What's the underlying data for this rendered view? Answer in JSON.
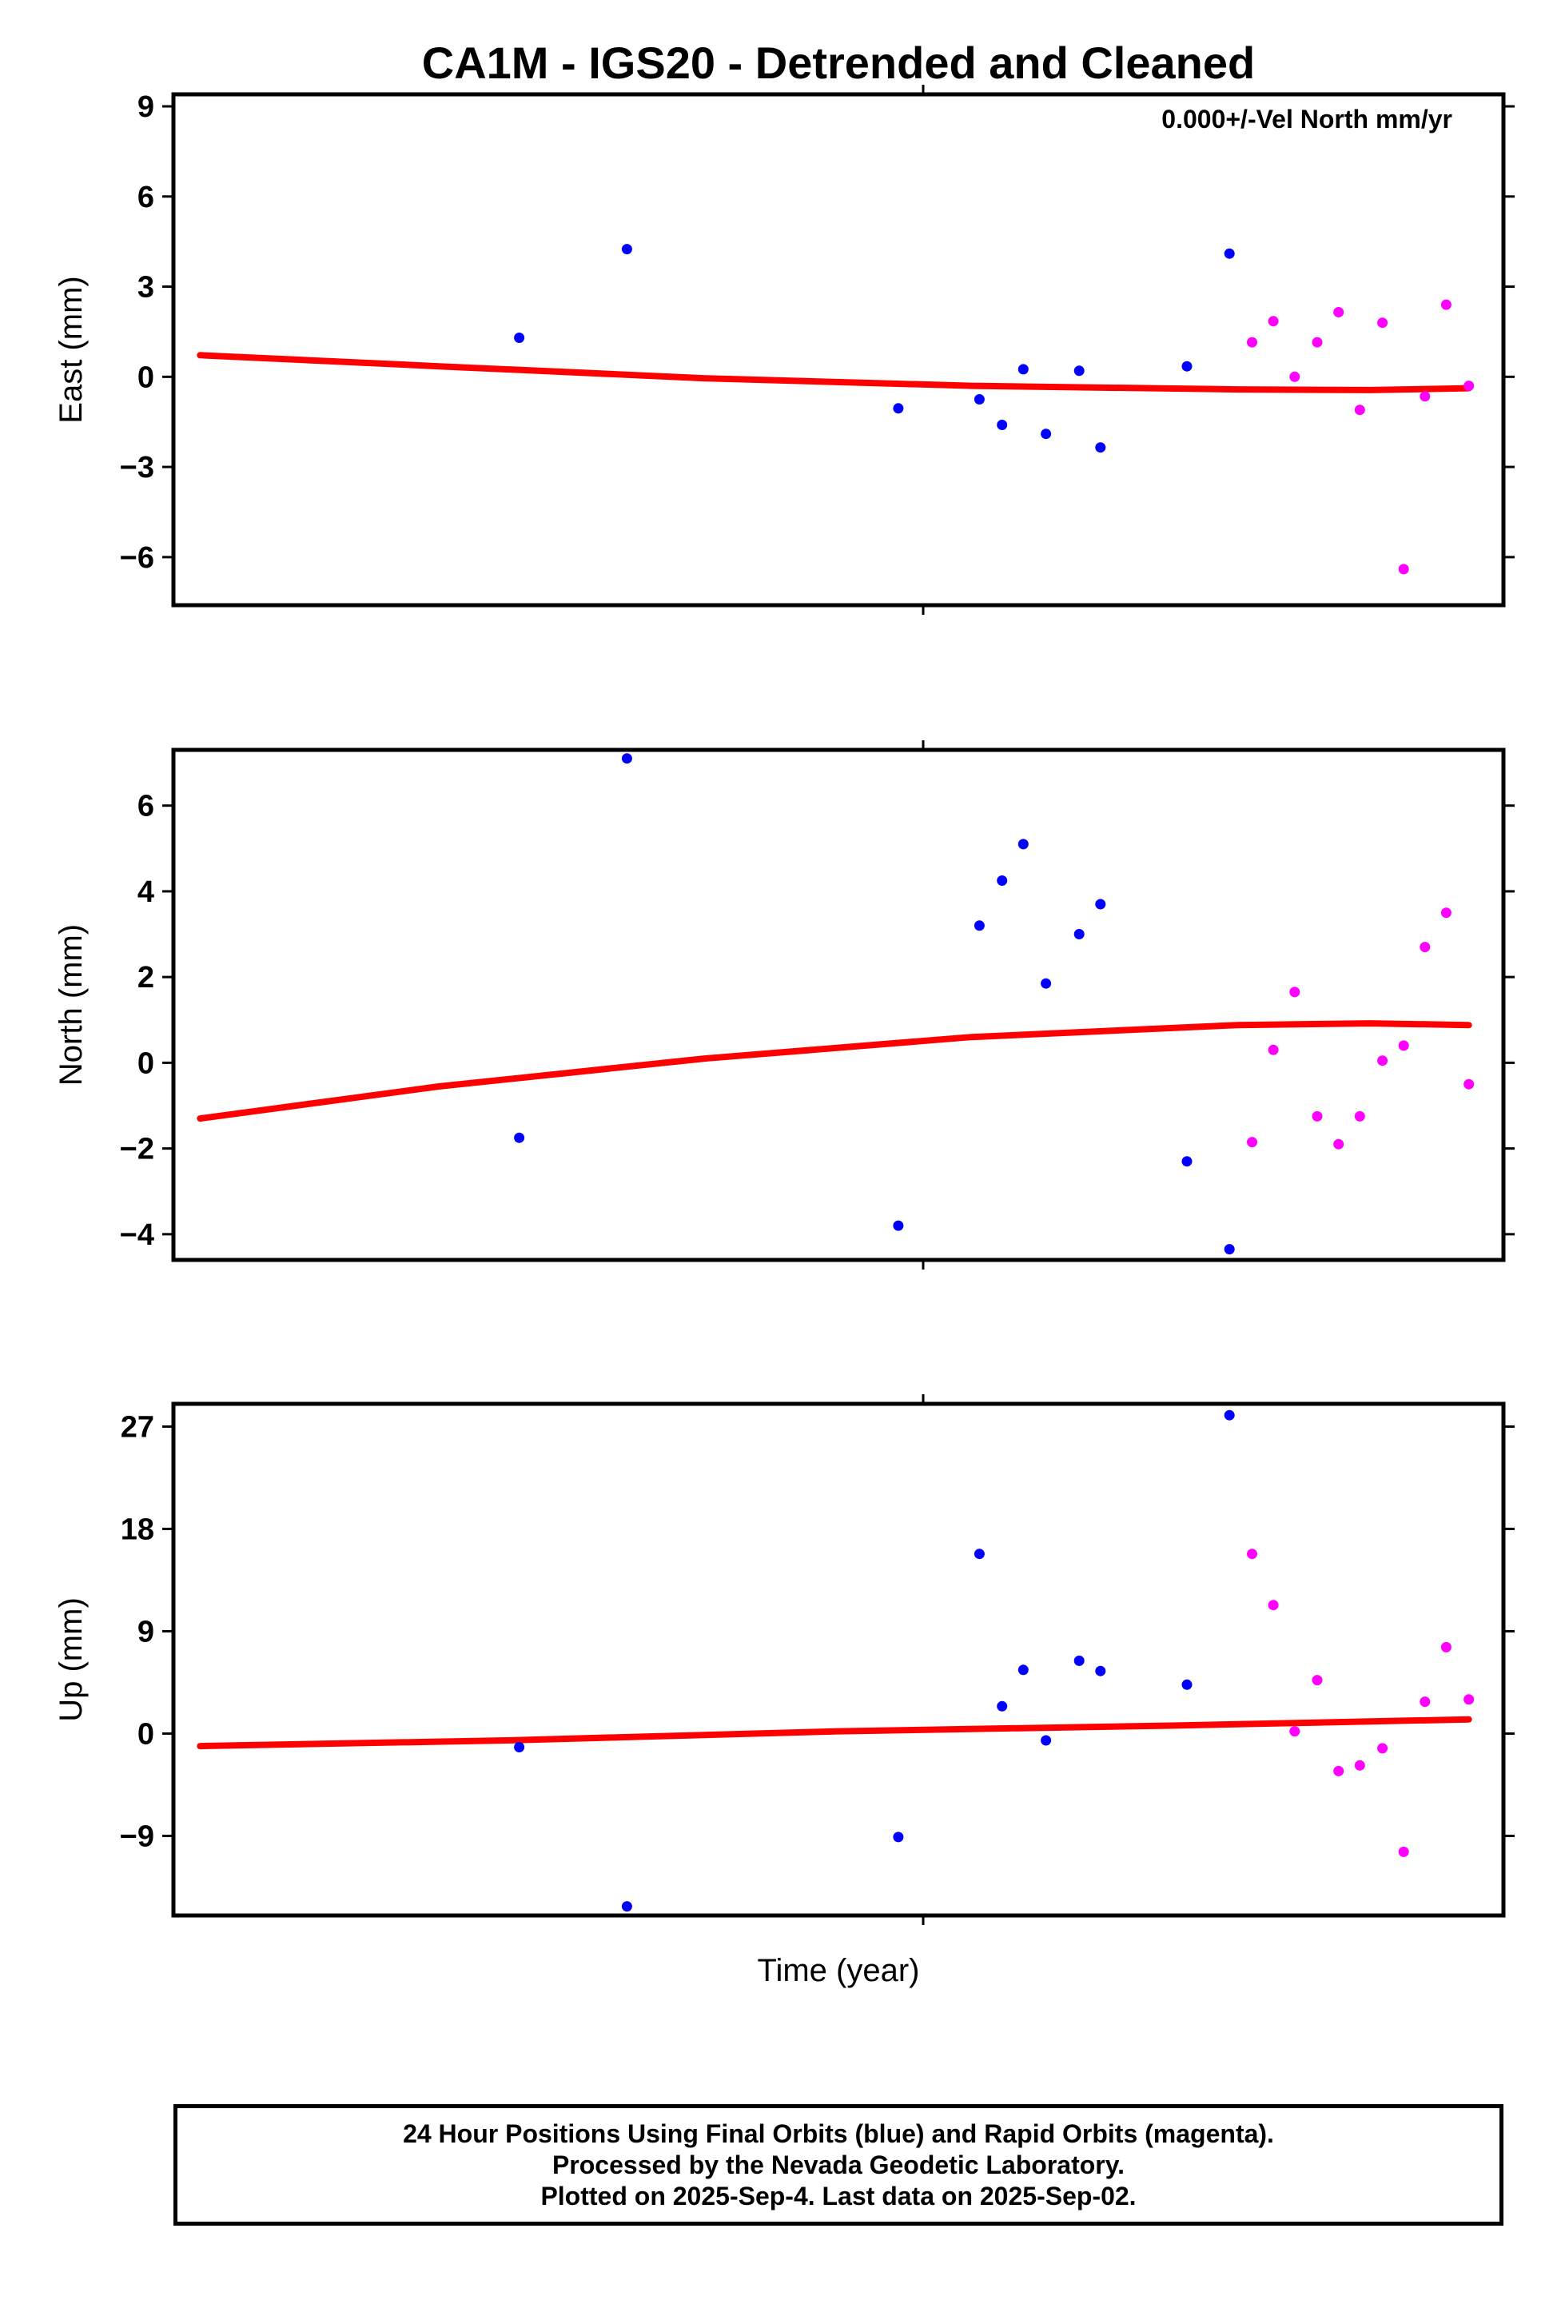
{
  "chart_data": {
    "title": "CA1M - IGS20 - Detrended and Cleaned",
    "xlabel": "Time (year)",
    "colors": {
      "final": "#0000ff",
      "rapid": "#ff00ff",
      "model": "#ff0000",
      "frame": "#000000"
    },
    "x_range": [
      0,
      100
    ],
    "panels": [
      {
        "type": "scatter",
        "ylabel": "East (mm)",
        "annotation": "0.000+/-Vel North mm/yr",
        "ylim": [
          -7.6,
          9.4
        ],
        "yticks": [
          "9",
          "6",
          "3",
          "0",
          "−3",
          "−6"
        ],
        "ytick_values": [
          9,
          6,
          3,
          0,
          -3,
          -6
        ],
        "series": [
          {
            "key": "final",
            "points": [
              [
                26,
                1.3
              ],
              [
                34.1,
                4.25
              ],
              [
                54.5,
                -1.05
              ],
              [
                60.6,
                -0.75
              ],
              [
                62.3,
                -1.6
              ],
              [
                63.9,
                0.25
              ],
              [
                65.6,
                -1.9
              ],
              [
                68.1,
                0.2
              ],
              [
                69.7,
                -2.35
              ],
              [
                76.2,
                0.35
              ],
              [
                79.4,
                4.1
              ]
            ]
          },
          {
            "key": "rapid",
            "points": [
              [
                81.1,
                1.15
              ],
              [
                82.7,
                1.85
              ],
              [
                84.3,
                0.0
              ],
              [
                86.0,
                1.15
              ],
              [
                87.6,
                2.15
              ],
              [
                89.2,
                -1.1
              ],
              [
                90.9,
                1.8
              ],
              [
                92.5,
                -6.4
              ],
              [
                94.1,
                -0.65
              ],
              [
                95.7,
                2.4
              ],
              [
                97.4,
                -0.3
              ]
            ]
          }
        ],
        "model_line": [
          [
            2,
            0.72
          ],
          [
            20,
            0.35
          ],
          [
            40,
            -0.05
          ],
          [
            60,
            -0.3
          ],
          [
            80,
            -0.42
          ],
          [
            90,
            -0.44
          ],
          [
            97.4,
            -0.38
          ]
        ]
      },
      {
        "type": "scatter",
        "ylabel": "North (mm)",
        "ylim": [
          -4.6,
          7.3
        ],
        "yticks": [
          "6",
          "4",
          "2",
          "0",
          "−2",
          "−4"
        ],
        "ytick_values": [
          6,
          4,
          2,
          0,
          -2,
          -4
        ],
        "series": [
          {
            "key": "final",
            "points": [
              [
                26,
                -1.75
              ],
              [
                34.1,
                7.1
              ],
              [
                54.5,
                -3.8
              ],
              [
                60.6,
                3.2
              ],
              [
                62.3,
                4.25
              ],
              [
                63.9,
                5.1
              ],
              [
                65.6,
                1.85
              ],
              [
                68.1,
                3.0
              ],
              [
                69.7,
                3.7
              ],
              [
                76.2,
                -2.3
              ],
              [
                79.4,
                -4.35
              ]
            ]
          },
          {
            "key": "rapid",
            "points": [
              [
                81.1,
                -1.85
              ],
              [
                82.7,
                0.3
              ],
              [
                84.3,
                1.65
              ],
              [
                86.0,
                -1.25
              ],
              [
                87.6,
                -1.9
              ],
              [
                89.2,
                -1.25
              ],
              [
                90.9,
                0.05
              ],
              [
                92.5,
                0.4
              ],
              [
                94.1,
                2.7
              ],
              [
                95.7,
                3.5
              ],
              [
                97.4,
                -0.5
              ]
            ]
          }
        ],
        "model_line": [
          [
            2,
            -1.3
          ],
          [
            20,
            -0.55
          ],
          [
            40,
            0.1
          ],
          [
            60,
            0.6
          ],
          [
            80,
            0.88
          ],
          [
            90,
            0.92
          ],
          [
            97.4,
            0.88
          ]
        ]
      },
      {
        "type": "scatter",
        "ylabel": "Up (mm)",
        "ylim": [
          -16,
          29
        ],
        "yticks": [
          "27",
          "18",
          "9",
          "0",
          "−9"
        ],
        "ytick_values": [
          27,
          18,
          9,
          0,
          -9
        ],
        "series": [
          {
            "key": "final",
            "points": [
              [
                26,
                -1.2
              ],
              [
                34.1,
                -15.2
              ],
              [
                54.5,
                -9.1
              ],
              [
                60.6,
                15.8
              ],
              [
                62.3,
                2.4
              ],
              [
                63.9,
                5.6
              ],
              [
                65.6,
                -0.6
              ],
              [
                68.1,
                6.4
              ],
              [
                69.7,
                5.5
              ],
              [
                76.2,
                4.3
              ],
              [
                79.4,
                28.0
              ]
            ]
          },
          {
            "key": "rapid",
            "points": [
              [
                81.1,
                15.8
              ],
              [
                82.7,
                11.3
              ],
              [
                84.3,
                0.2
              ],
              [
                86.0,
                4.7
              ],
              [
                87.6,
                -3.3
              ],
              [
                89.2,
                -2.8
              ],
              [
                90.9,
                -1.3
              ],
              [
                92.5,
                -10.4
              ],
              [
                94.1,
                2.8
              ],
              [
                95.7,
                7.6
              ],
              [
                97.4,
                3.0
              ]
            ]
          }
        ],
        "model_line": [
          [
            2,
            -1.1
          ],
          [
            25,
            -0.6
          ],
          [
            50,
            0.2
          ],
          [
            75,
            0.7
          ],
          [
            97.4,
            1.25
          ]
        ]
      }
    ]
  },
  "footer": {
    "line1": "24 Hour Positions Using Final Orbits (blue) and Rapid Orbits (magenta).",
    "line2": "Processed by the Nevada Geodetic Laboratory.",
    "line3": "Plotted on 2025-Sep-4. Last data on 2025-Sep-02."
  }
}
